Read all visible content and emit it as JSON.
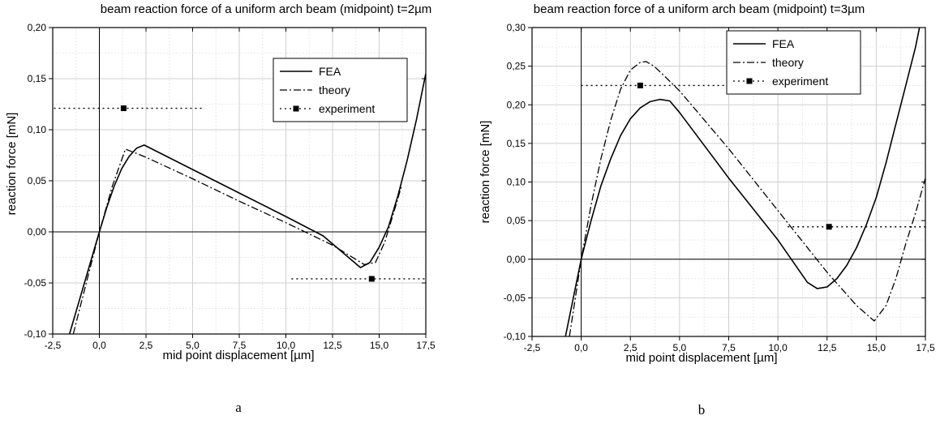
{
  "chart_data": [
    {
      "type": "line",
      "title": "beam reaction force of a uniform arch beam (midpoint) t=2µm",
      "xlabel": "mid point displacement [µm]",
      "ylabel": "reaction force [mN]",
      "caption": "a",
      "xlim": [
        -2.5,
        17.5
      ],
      "ylim": [
        -0.1,
        0.2
      ],
      "x_ticks": [
        "-2,5",
        "0,0",
        "2,5",
        "5,0",
        "7,5",
        "10,0",
        "12,5",
        "15,0",
        "17,5"
      ],
      "y_ticks": [
        "-0,10",
        "-0,05",
        "0,00",
        "0,05",
        "0,10",
        "0,15",
        "0,20"
      ],
      "grid": true,
      "legend_position": "top-right",
      "series": [
        {
          "name": "FEA",
          "style": "solid",
          "x": [
            -1.6,
            -1.2,
            -0.8,
            -0.4,
            0.0,
            0.4,
            0.8,
            1.2,
            1.6,
            2.0,
            2.4,
            5.0,
            7.5,
            10.0,
            12.0,
            14.0,
            14.5,
            15.0,
            15.5,
            16.0,
            16.5,
            17.0,
            17.5
          ],
          "y": [
            -0.1,
            -0.075,
            -0.05,
            -0.025,
            0.0,
            0.024,
            0.045,
            0.062,
            0.074,
            0.082,
            0.085,
            0.061,
            0.038,
            0.015,
            -0.004,
            -0.035,
            -0.03,
            -0.015,
            0.005,
            0.035,
            0.07,
            0.11,
            0.155
          ]
        },
        {
          "name": "theory",
          "style": "dashdot",
          "x": [
            -1.4,
            -0.7,
            0.0,
            0.7,
            1.4,
            2.5,
            5.0,
            7.5,
            10.0,
            12.5,
            14.2,
            14.8,
            15.3,
            15.8,
            16.2
          ],
          "y": [
            -0.1,
            -0.05,
            0.0,
            0.045,
            0.081,
            0.073,
            0.052,
            0.03,
            0.009,
            -0.013,
            -0.032,
            -0.03,
            -0.01,
            0.02,
            0.045
          ]
        }
      ],
      "experiment": {
        "name": "experiment",
        "style": "dotted",
        "points": [
          {
            "x": 1.3,
            "y": 0.121,
            "x_min": -4.0,
            "x_max": 5.6
          },
          {
            "x": 14.6,
            "y": -0.046,
            "x_min": 10.3,
            "x_max": 17.5
          }
        ]
      }
    },
    {
      "type": "line",
      "title": "beam reaction force of a uniform arch beam (midpoint) t=3µm",
      "xlabel": "mid point displacement [µm]",
      "ylabel": "reaction force [mN]",
      "caption": "b",
      "xlim": [
        -2.5,
        17.5
      ],
      "ylim": [
        -0.1,
        0.3
      ],
      "x_ticks": [
        "-2,5",
        "0,0",
        "2,5",
        "5,0",
        "7,5",
        "10,0",
        "12,5",
        "15,0",
        "17,5"
      ],
      "y_ticks": [
        "-0,10",
        "-0,05",
        "0,00",
        "0,05",
        "0,10",
        "0,15",
        "0,20",
        "0,25",
        "0,30"
      ],
      "grid": true,
      "legend_position": "top-right",
      "series": [
        {
          "name": "FEA",
          "style": "solid",
          "x": [
            -0.8,
            -0.4,
            0.0,
            0.5,
            1.0,
            1.5,
            2.0,
            2.5,
            3.0,
            3.5,
            4.0,
            4.5,
            5.0,
            7.5,
            10.0,
            11.5,
            12.0,
            12.5,
            13.0,
            13.5,
            14.0,
            14.5,
            15.0,
            15.5,
            16.0,
            16.5,
            17.0,
            17.2
          ],
          "y": [
            -0.1,
            -0.05,
            0.0,
            0.05,
            0.095,
            0.13,
            0.16,
            0.182,
            0.196,
            0.204,
            0.207,
            0.205,
            0.19,
            0.105,
            0.025,
            -0.03,
            -0.038,
            -0.036,
            -0.025,
            -0.008,
            0.015,
            0.045,
            0.08,
            0.125,
            0.175,
            0.225,
            0.275,
            0.3
          ]
        },
        {
          "name": "theory",
          "style": "dashdot",
          "x": [
            -0.6,
            -0.3,
            0.0,
            0.5,
            1.0,
            1.5,
            2.0,
            2.5,
            3.0,
            3.3,
            3.7,
            4.2,
            5.0,
            7.5,
            10.0,
            12.5,
            14.0,
            14.9,
            15.5,
            16.0,
            16.5,
            17.0,
            17.5
          ],
          "y": [
            -0.1,
            -0.05,
            0.0,
            0.07,
            0.13,
            0.18,
            0.22,
            0.245,
            0.255,
            0.256,
            0.25,
            0.238,
            0.218,
            0.143,
            0.063,
            -0.017,
            -0.06,
            -0.08,
            -0.06,
            -0.025,
            0.02,
            0.06,
            0.105
          ]
        }
      ],
      "experiment": {
        "name": "experiment",
        "style": "dotted",
        "points": [
          {
            "x": 3.0,
            "y": 0.225,
            "x_min": 0.0,
            "x_max": 7.5
          },
          {
            "x": 12.6,
            "y": 0.042,
            "x_min": 10.5,
            "x_max": 17.5
          }
        ]
      }
    }
  ]
}
